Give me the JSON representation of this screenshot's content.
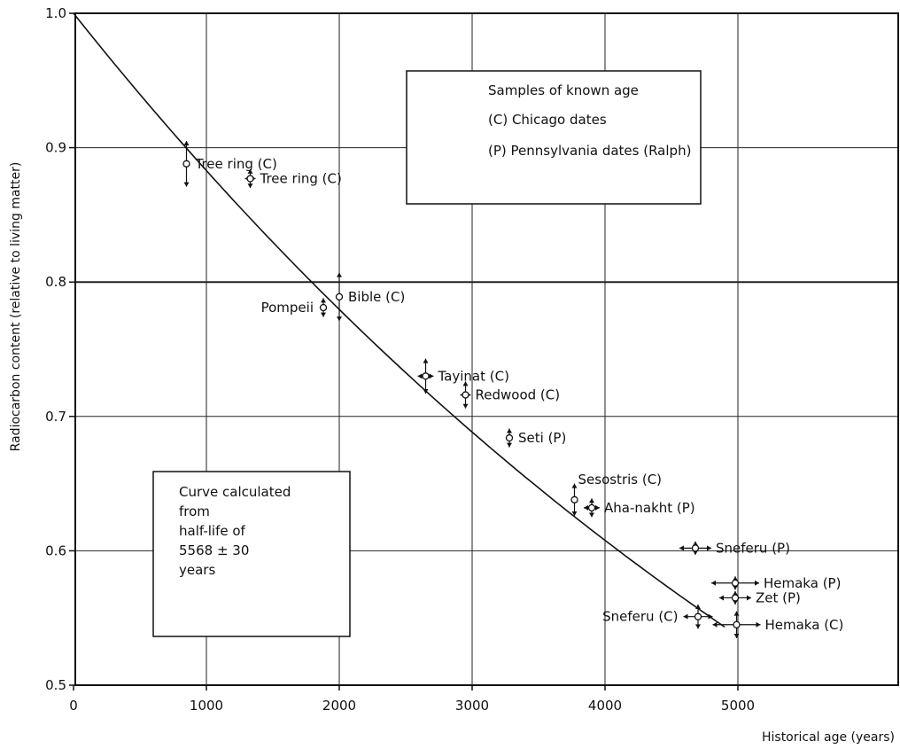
{
  "chart_data": {
    "type": "scatter",
    "xlabel": "Historical age (years)",
    "ylabel": "Radiocarbon content (relative to living matter)",
    "xlim": [
      0,
      6100
    ],
    "ylim": [
      0.5,
      1.0
    ],
    "x_ticks": [
      "0",
      "1000",
      "2000",
      "3000",
      "4000",
      "5000"
    ],
    "y_ticks": [
      "0.5",
      "0.6",
      "0.7",
      "0.8",
      "0.9",
      "1.0"
    ],
    "grid": true,
    "legend_box": {
      "lines": [
        "Samples of known age",
        "(C) Chicago dates",
        "(P) Pennsylvania dates (Ralph)"
      ]
    },
    "curve_box": {
      "lines": [
        "Curve calculated",
        "from",
        "half-life of",
        "5568 ± 30",
        "years"
      ]
    },
    "curve": {
      "half_life": 5568,
      "x_range": [
        0,
        4900
      ]
    },
    "points": [
      {
        "label": "Tree ring (C)",
        "x": 850,
        "y": 0.888,
        "err_y": 0.017,
        "err_x": 0,
        "label_side": "right"
      },
      {
        "label": "Tree ring (C)",
        "x": 1330,
        "y": 0.877,
        "err_y": 0.007,
        "err_x": 40,
        "label_side": "right"
      },
      {
        "label": "Pompeii",
        "x": 1880,
        "y": 0.781,
        "err_y": 0.007,
        "err_x": 0,
        "label_side": "left"
      },
      {
        "label": "Bible (C)",
        "x": 2000,
        "y": 0.789,
        "err_y": 0.018,
        "err_x": 0,
        "label_side": "right"
      },
      {
        "label": "Tayinat (C)",
        "x": 2650,
        "y": 0.73,
        "err_y": 0.013,
        "err_x": 60,
        "label_side": "right"
      },
      {
        "label": "Redwood (C)",
        "x": 2950,
        "y": 0.716,
        "err_y": 0.01,
        "err_x": 40,
        "label_side": "right"
      },
      {
        "label": "Seti (P)",
        "x": 3280,
        "y": 0.684,
        "err_y": 0.007,
        "err_x": 0,
        "label_side": "right"
      },
      {
        "label": "Sesostris (C)",
        "x": 3770,
        "y": 0.638,
        "err_y": 0.012,
        "err_x": 0,
        "label_side": "above-right"
      },
      {
        "label": "Aha-nakht (P)",
        "x": 3900,
        "y": 0.632,
        "err_y": 0.007,
        "err_x": 60,
        "label_side": "right"
      },
      {
        "label": "Sneferu (P)",
        "x": 4680,
        "y": 0.602,
        "err_y": 0.005,
        "err_x": 120,
        "label_side": "right"
      },
      {
        "label": "Hemaka (P)",
        "x": 4980,
        "y": 0.576,
        "err_y": 0.005,
        "err_x": 180,
        "label_side": "right"
      },
      {
        "label": "Zet (P)",
        "x": 4980,
        "y": 0.565,
        "err_y": 0.005,
        "err_x": 120,
        "label_side": "right"
      },
      {
        "label": "Sneferu (C)",
        "x": 4700,
        "y": 0.551,
        "err_y": 0.009,
        "err_x": 110,
        "label_side": "left"
      },
      {
        "label": "Hemaka (C)",
        "x": 4990,
        "y": 0.545,
        "err_y": 0.01,
        "err_x": 180,
        "label_side": "right"
      }
    ]
  }
}
